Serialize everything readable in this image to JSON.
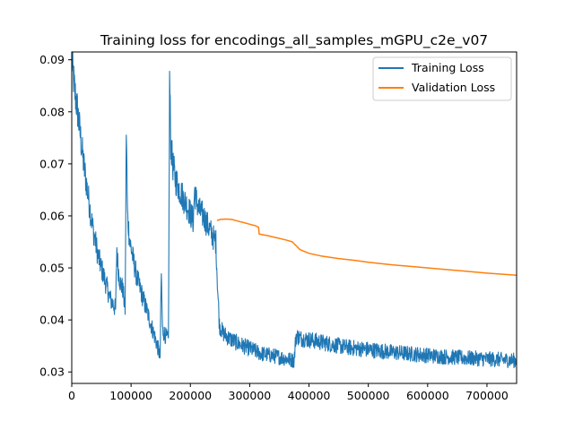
{
  "chart_data": {
    "type": "line",
    "title": "Training loss for encodings_all_samples_mGPU_c2e_v07",
    "xlabel": "",
    "ylabel": "",
    "xlim": [
      0,
      750000
    ],
    "ylim": [
      0.0278,
      0.0915
    ],
    "xticks": [
      0,
      100000,
      200000,
      300000,
      400000,
      500000,
      600000,
      700000
    ],
    "xtick_labels": [
      "0",
      "100000",
      "200000",
      "300000",
      "400000",
      "500000",
      "600000",
      "700000"
    ],
    "yticks": [
      0.03,
      0.04,
      0.05,
      0.06,
      0.07,
      0.08,
      0.09
    ],
    "ytick_labels": [
      "0.03",
      "0.04",
      "0.05",
      "0.06",
      "0.07",
      "0.08",
      "0.09"
    ],
    "grid": false,
    "legend_position": "top-right",
    "series": [
      {
        "name": "Training Loss",
        "color": "#1f77b4",
        "noisy": true,
        "points": [
          [
            0,
            0.09
          ],
          [
            5000,
            0.084
          ],
          [
            10000,
            0.08
          ],
          [
            15000,
            0.075
          ],
          [
            20000,
            0.07
          ],
          [
            25000,
            0.066
          ],
          [
            30000,
            0.062
          ],
          [
            35000,
            0.058
          ],
          [
            40000,
            0.055
          ],
          [
            45000,
            0.052
          ],
          [
            50000,
            0.05
          ],
          [
            55000,
            0.048
          ],
          [
            60000,
            0.046
          ],
          [
            65000,
            0.044
          ],
          [
            70000,
            0.043
          ],
          [
            74000,
            0.042
          ],
          [
            76000,
            0.054
          ],
          [
            78000,
            0.05
          ],
          [
            82000,
            0.047
          ],
          [
            86000,
            0.046
          ],
          [
            90000,
            0.042
          ],
          [
            92000,
            0.077
          ],
          [
            94000,
            0.06
          ],
          [
            98000,
            0.055
          ],
          [
            103000,
            0.052
          ],
          [
            110000,
            0.048
          ],
          [
            118000,
            0.045
          ],
          [
            126000,
            0.042
          ],
          [
            134000,
            0.039
          ],
          [
            142000,
            0.036
          ],
          [
            149000,
            0.033
          ],
          [
            151000,
            0.049
          ],
          [
            153000,
            0.038
          ],
          [
            158000,
            0.037
          ],
          [
            163000,
            0.036
          ],
          [
            165000,
            0.0865
          ],
          [
            167000,
            0.074
          ],
          [
            170000,
            0.07
          ],
          [
            175000,
            0.067
          ],
          [
            182000,
            0.065
          ],
          [
            190000,
            0.063
          ],
          [
            198000,
            0.061
          ],
          [
            205000,
            0.059
          ],
          [
            207000,
            0.065
          ],
          [
            210000,
            0.063
          ],
          [
            215000,
            0.061
          ],
          [
            222000,
            0.06
          ],
          [
            230000,
            0.058
          ],
          [
            238000,
            0.056
          ],
          [
            243000,
            0.055
          ],
          [
            246000,
            0.046
          ],
          [
            249000,
            0.039
          ],
          [
            255000,
            0.0375
          ],
          [
            265000,
            0.0365
          ],
          [
            280000,
            0.0355
          ],
          [
            300000,
            0.0345
          ],
          [
            320000,
            0.0335
          ],
          [
            345000,
            0.033
          ],
          [
            375000,
            0.0322
          ],
          [
            378000,
            0.037
          ],
          [
            385000,
            0.0365
          ],
          [
            400000,
            0.0362
          ],
          [
            430000,
            0.0355
          ],
          [
            460000,
            0.0348
          ],
          [
            500000,
            0.0343
          ],
          [
            540000,
            0.0338
          ],
          [
            580000,
            0.0334
          ],
          [
            620000,
            0.033
          ],
          [
            660000,
            0.0327
          ],
          [
            700000,
            0.0325
          ],
          [
            750000,
            0.0322
          ]
        ]
      },
      {
        "name": "Validation Loss",
        "color": "#ff7f0e",
        "noisy": false,
        "points": [
          [
            245000,
            0.0591
          ],
          [
            250000,
            0.0593
          ],
          [
            260000,
            0.0594
          ],
          [
            270000,
            0.0593
          ],
          [
            280000,
            0.059
          ],
          [
            290000,
            0.0587
          ],
          [
            300000,
            0.0584
          ],
          [
            310000,
            0.0581
          ],
          [
            315000,
            0.0578
          ],
          [
            316000,
            0.0565
          ],
          [
            330000,
            0.0562
          ],
          [
            345000,
            0.0558
          ],
          [
            360000,
            0.0554
          ],
          [
            372000,
            0.055
          ],
          [
            378000,
            0.0543
          ],
          [
            385000,
            0.0535
          ],
          [
            400000,
            0.0528
          ],
          [
            420000,
            0.0523
          ],
          [
            450000,
            0.0518
          ],
          [
            480000,
            0.0514
          ],
          [
            500000,
            0.0511
          ],
          [
            540000,
            0.0506
          ],
          [
            580000,
            0.0502
          ],
          [
            620000,
            0.0498
          ],
          [
            660000,
            0.0494
          ],
          [
            700000,
            0.049
          ],
          [
            750000,
            0.0486
          ]
        ]
      }
    ]
  }
}
